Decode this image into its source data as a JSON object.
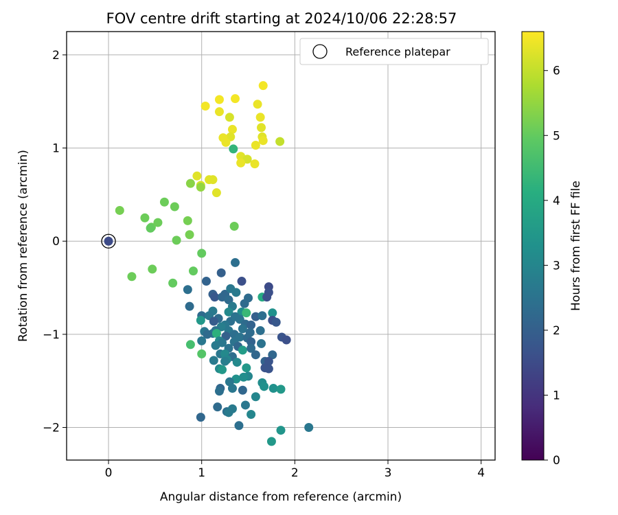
{
  "chart_data": {
    "type": "scatter",
    "title": "FOV centre drift starting at 2024/10/06 22:28:57",
    "xlabel": "Angular distance from reference (arcmin)",
    "ylabel": "Rotation from reference (arcmin)",
    "xlim": [
      -0.45,
      4.15
    ],
    "ylim": [
      -2.35,
      2.25
    ],
    "xticks": [
      0,
      1,
      2,
      3,
      4
    ],
    "yticks": [
      -2,
      -1,
      0,
      1,
      2
    ],
    "grid": true,
    "legend": {
      "position": "top-right",
      "label": "Reference platepar"
    },
    "colorbar": {
      "label": "Hours from first FF file",
      "colormap": "viridis",
      "range": [
        0,
        6.6
      ],
      "ticks": [
        0,
        1,
        2,
        3,
        4,
        5,
        6
      ]
    },
    "reference": {
      "x": 0,
      "y": 0,
      "hours": 1.5
    },
    "series": [
      {
        "points": [
          [
            1.04,
            1.45,
            6.5
          ],
          [
            1.19,
            1.52,
            6.5
          ],
          [
            1.36,
            1.53,
            6.5
          ],
          [
            1.66,
            1.67,
            6.5
          ],
          [
            1.19,
            1.39,
            6.4
          ],
          [
            1.6,
            1.47,
            6.4
          ],
          [
            1.3,
            1.33,
            6.2
          ],
          [
            1.63,
            1.33,
            6.4
          ],
          [
            1.33,
            1.2,
            6.4
          ],
          [
            1.64,
            1.22,
            6.3
          ],
          [
            1.31,
            1.12,
            6.3
          ],
          [
            1.23,
            1.11,
            6.4
          ],
          [
            1.26,
            1.06,
            6.4
          ],
          [
            1.65,
            1.12,
            6.3
          ],
          [
            1.66,
            1.08,
            6.4
          ],
          [
            1.58,
            1.03,
            6.4
          ],
          [
            1.84,
            1.07,
            6.0
          ],
          [
            1.42,
            0.91,
            6.3
          ],
          [
            1.49,
            0.88,
            6.2
          ],
          [
            1.42,
            0.84,
            6.4
          ],
          [
            1.57,
            0.83,
            6.4
          ],
          [
            0.95,
            0.7,
            6.3
          ],
          [
            0.99,
            0.6,
            6.2
          ],
          [
            1.08,
            0.66,
            6.3
          ],
          [
            1.12,
            0.66,
            6.3
          ],
          [
            1.16,
            0.52,
            6.3
          ],
          [
            1.34,
            0.99,
            4.3
          ],
          [
            0.88,
            0.62,
            5.4
          ],
          [
            0.99,
            0.58,
            5.5
          ],
          [
            0.12,
            0.33,
            5.2
          ],
          [
            0.6,
            0.42,
            5.1
          ],
          [
            0.71,
            0.37,
            5.1
          ],
          [
            0.39,
            0.25,
            5.1
          ],
          [
            0.53,
            0.2,
            5.1
          ],
          [
            0.46,
            0.15,
            5.1
          ],
          [
            0.45,
            0.14,
            5.0
          ],
          [
            0.85,
            0.22,
            5.2
          ],
          [
            0.87,
            0.07,
            5.2
          ],
          [
            0.73,
            0.01,
            5.1
          ],
          [
            1.35,
            0.16,
            5.1
          ],
          [
            0.25,
            -0.38,
            5.1
          ],
          [
            0.47,
            -0.3,
            5.1
          ],
          [
            0.69,
            -0.45,
            5.0
          ],
          [
            0.91,
            -0.32,
            5.0
          ],
          [
            1.0,
            -0.13,
            5.0
          ],
          [
            1.36,
            -0.23,
            2.4
          ],
          [
            1.05,
            -0.43,
            2.1
          ],
          [
            1.21,
            -0.34,
            2.0
          ],
          [
            1.43,
            -0.43,
            1.6
          ],
          [
            1.72,
            -0.49,
            1.5
          ],
          [
            0.85,
            -0.52,
            2.4
          ],
          [
            1.12,
            -0.57,
            2.0
          ],
          [
            1.25,
            -0.57,
            2.2
          ],
          [
            1.31,
            -0.51,
            2.6
          ],
          [
            1.37,
            -0.55,
            2.7
          ],
          [
            1.5,
            -0.61,
            2.3
          ],
          [
            1.65,
            -0.6,
            4.0
          ],
          [
            1.7,
            -0.6,
            1.6
          ],
          [
            1.72,
            -0.55,
            1.6
          ],
          [
            1.14,
            -0.6,
            1.8
          ],
          [
            1.22,
            -0.6,
            2.2
          ],
          [
            1.29,
            -0.63,
            2.3
          ],
          [
            1.46,
            -0.67,
            2.3
          ],
          [
            1.33,
            -0.7,
            2.7
          ],
          [
            0.87,
            -0.7,
            2.3
          ],
          [
            1.12,
            -0.75,
            2.7
          ],
          [
            1.29,
            -0.76,
            3.1
          ],
          [
            1.43,
            -0.76,
            3.2
          ],
          [
            1.48,
            -0.77,
            4.4
          ],
          [
            1.58,
            -0.81,
            2.0
          ],
          [
            1.76,
            -0.77,
            3.3
          ],
          [
            1.0,
            -0.8,
            2.3
          ],
          [
            1.08,
            -0.8,
            2.6
          ],
          [
            1.18,
            -0.83,
            2.3
          ],
          [
            1.31,
            -0.86,
            2.4
          ],
          [
            1.36,
            -0.81,
            2.5
          ],
          [
            1.41,
            -0.84,
            2.5
          ],
          [
            1.65,
            -0.8,
            2.4
          ],
          [
            1.76,
            -0.85,
            1.6
          ],
          [
            1.8,
            -0.87,
            1.8
          ],
          [
            0.99,
            -0.85,
            3.5
          ],
          [
            1.13,
            -0.86,
            1.9
          ],
          [
            1.25,
            -0.9,
            2.6
          ],
          [
            1.47,
            -0.89,
            2.3
          ],
          [
            1.53,
            -0.9,
            2.1
          ],
          [
            1.21,
            -0.92,
            2.8
          ],
          [
            1.44,
            -0.94,
            2.5
          ],
          [
            1.12,
            -0.99,
            2.5
          ],
          [
            1.15,
            -0.96,
            2.5
          ],
          [
            1.29,
            -0.96,
            2.6
          ],
          [
            1.35,
            -1.0,
            2.4
          ],
          [
            1.52,
            -0.98,
            2.3
          ],
          [
            1.63,
            -0.96,
            2.4
          ],
          [
            1.03,
            -0.97,
            2.6
          ],
          [
            1.06,
            -1.0,
            2.3
          ],
          [
            1.16,
            -0.99,
            4.2
          ],
          [
            1.26,
            -1.02,
            2.0
          ],
          [
            1.41,
            -1.03,
            2.5
          ],
          [
            1.49,
            -1.04,
            2.3
          ],
          [
            1.86,
            -1.03,
            1.7
          ],
          [
            1.91,
            -1.06,
            1.6
          ],
          [
            0.88,
            -1.11,
            4.6
          ],
          [
            1.0,
            -1.07,
            2.6
          ],
          [
            1.19,
            -1.07,
            3.1
          ],
          [
            1.22,
            -1.09,
            2.6
          ],
          [
            1.35,
            -1.08,
            2.5
          ],
          [
            1.53,
            -1.08,
            2.1
          ],
          [
            1.64,
            -1.1,
            2.5
          ],
          [
            1.15,
            -1.12,
            2.7
          ],
          [
            1.29,
            -1.15,
            2.5
          ],
          [
            1.39,
            -1.13,
            2.2
          ],
          [
            1.44,
            -1.17,
            3.6
          ],
          [
            1.53,
            -1.15,
            2.3
          ],
          [
            1.0,
            -1.21,
            4.8
          ],
          [
            1.2,
            -1.21,
            2.6
          ],
          [
            1.25,
            -1.21,
            3.1
          ],
          [
            1.33,
            -1.24,
            2.4
          ],
          [
            1.58,
            -1.22,
            2.2
          ],
          [
            1.76,
            -1.22,
            2.2
          ],
          [
            1.13,
            -1.28,
            2.7
          ],
          [
            1.27,
            -1.27,
            3.0
          ],
          [
            1.25,
            -1.29,
            2.8
          ],
          [
            1.38,
            -1.3,
            3.1
          ],
          [
            1.68,
            -1.29,
            2.1
          ],
          [
            1.72,
            -1.29,
            1.7
          ],
          [
            1.19,
            -1.37,
            3.1
          ],
          [
            1.22,
            -1.38,
            3.5
          ],
          [
            1.48,
            -1.36,
            3.5
          ],
          [
            1.68,
            -1.36,
            1.7
          ],
          [
            1.72,
            -1.37,
            1.7
          ],
          [
            1.5,
            -1.45,
            3.0
          ],
          [
            1.37,
            -1.48,
            3.3
          ],
          [
            1.45,
            -1.46,
            3.2
          ],
          [
            1.3,
            -1.51,
            2.6
          ],
          [
            1.65,
            -1.52,
            3.2
          ],
          [
            1.2,
            -1.58,
            2.2
          ],
          [
            1.19,
            -1.61,
            2.4
          ],
          [
            1.33,
            -1.58,
            2.6
          ],
          [
            1.44,
            -1.6,
            2.2
          ],
          [
            1.67,
            -1.56,
            3.3
          ],
          [
            1.77,
            -1.58,
            3.3
          ],
          [
            1.85,
            -1.59,
            3.5
          ],
          [
            1.58,
            -1.67,
            3.0
          ],
          [
            1.17,
            -1.78,
            2.3
          ],
          [
            1.27,
            -1.83,
            2.4
          ],
          [
            1.29,
            -1.84,
            2.7
          ],
          [
            1.33,
            -1.8,
            2.7
          ],
          [
            1.47,
            -1.76,
            2.6
          ],
          [
            1.53,
            -1.86,
            3.0
          ],
          [
            0.99,
            -1.89,
            2.2
          ],
          [
            1.4,
            -1.98,
            2.4
          ],
          [
            1.85,
            -2.03,
            3.4
          ],
          [
            2.15,
            -2.0,
            2.6
          ],
          [
            1.75,
            -2.15,
            3.5
          ],
          [
            0.0,
            0.0,
            1.5
          ]
        ]
      }
    ]
  }
}
